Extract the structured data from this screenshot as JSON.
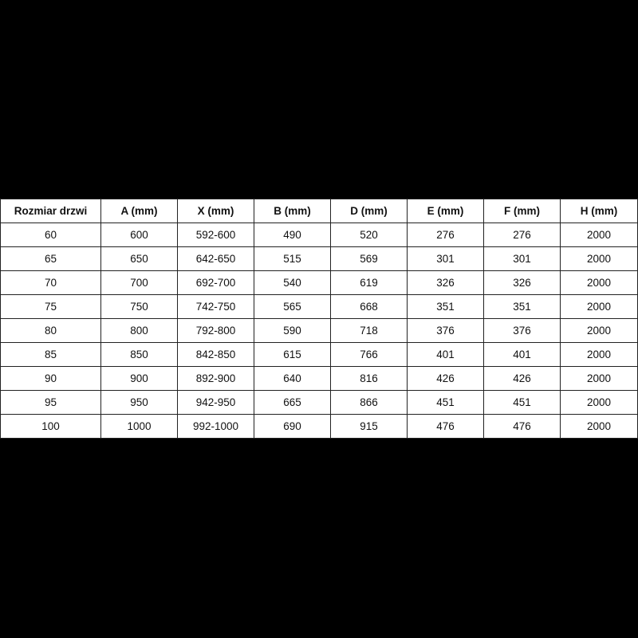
{
  "table": {
    "headers": [
      "Rozmiar drzwi",
      "A (mm)",
      "X (mm)",
      "B (mm)",
      "D (mm)",
      "E (mm)",
      "F (mm)",
      "H (mm)"
    ],
    "rows": [
      [
        "60",
        "600",
        "592-600",
        "490",
        "520",
        "276",
        "276",
        "2000"
      ],
      [
        "65",
        "650",
        "642-650",
        "515",
        "569",
        "301",
        "301",
        "2000"
      ],
      [
        "70",
        "700",
        "692-700",
        "540",
        "619",
        "326",
        "326",
        "2000"
      ],
      [
        "75",
        "750",
        "742-750",
        "565",
        "668",
        "351",
        "351",
        "2000"
      ],
      [
        "80",
        "800",
        "792-800",
        "590",
        "718",
        "376",
        "376",
        "2000"
      ],
      [
        "85",
        "850",
        "842-850",
        "615",
        "766",
        "401",
        "401",
        "2000"
      ],
      [
        "90",
        "900",
        "892-900",
        "640",
        "816",
        "426",
        "426",
        "2000"
      ],
      [
        "95",
        "950",
        "942-950",
        "665",
        "866",
        "451",
        "451",
        "2000"
      ],
      [
        "100",
        "1000",
        "992-1000",
        "690",
        "915",
        "476",
        "476",
        "2000"
      ]
    ]
  }
}
